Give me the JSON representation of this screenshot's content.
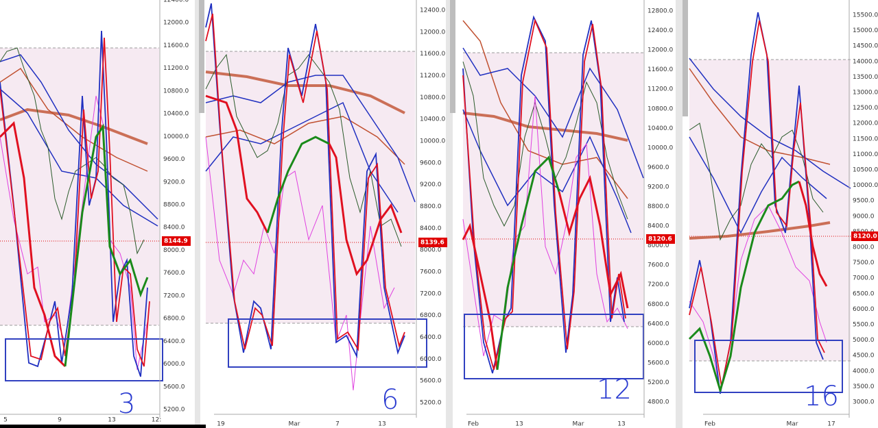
{
  "panels": [
    {
      "price_labels": [
        "12400.0",
        "12000.0",
        "11600.0",
        "11200.0",
        "10800.0",
        "10400.0",
        "10000.0",
        "9600.0",
        "9200.0",
        "8800.0",
        "8400.0",
        "8000.0",
        "7600.0",
        "7200.0",
        "6800.0",
        "6400.0",
        "6000.0",
        "5600.0",
        "5200.0"
      ],
      "date_labels": [
        "5",
        "9",
        "13",
        "12:"
      ],
      "price_tag": "8144.9",
      "note": "3"
    },
    {
      "price_labels": [
        "12400.0",
        "12000.0",
        "11600.0",
        "11200.0",
        "10800.0",
        "10400.0",
        "10000.0",
        "9600.0",
        "9200.0",
        "8800.0",
        "8400.0",
        "8000.0",
        "7600.0",
        "7200.0",
        "6800.0",
        "6400.0",
        "6000.0",
        "5600.0",
        "5200.0"
      ],
      "date_labels": [
        "19",
        "Mar",
        "7",
        "13"
      ],
      "price_tag": "8139.6",
      "note": "6"
    },
    {
      "price_labels": [
        "12800.0",
        "12400.0",
        "12000.0",
        "11600.0",
        "11200.0",
        "10800.0",
        "10400.0",
        "10000.0",
        "9600.0",
        "9200.0",
        "8800.0",
        "8400.0",
        "8000.0",
        "7600.0",
        "7200.0",
        "6800.0",
        "6400.0",
        "6000.0",
        "5600.0",
        "5200.0",
        "4800.0"
      ],
      "date_labels": [
        "Feb",
        "13",
        "Mar",
        "13"
      ],
      "price_tag": "8120.6",
      "note": "12"
    },
    {
      "price_labels": [
        "15500.0",
        "15000.0",
        "14500.0",
        "14000.0",
        "13500.0",
        "13000.0",
        "12500.0",
        "12000.0",
        "11500.0",
        "11000.0",
        "10500.0",
        "10000.0",
        "9500.0",
        "9000.0",
        "8500.0",
        "8000.0",
        "7500.0",
        "7000.0",
        "6500.0",
        "6000.0",
        "5500.0",
        "5000.0",
        "4500.0",
        "4000.0",
        "3500.0",
        "3000.0"
      ],
      "date_labels": [
        "Feb",
        "Mar",
        "17"
      ],
      "price_tag": "8120.0",
      "note": "16"
    }
  ]
}
